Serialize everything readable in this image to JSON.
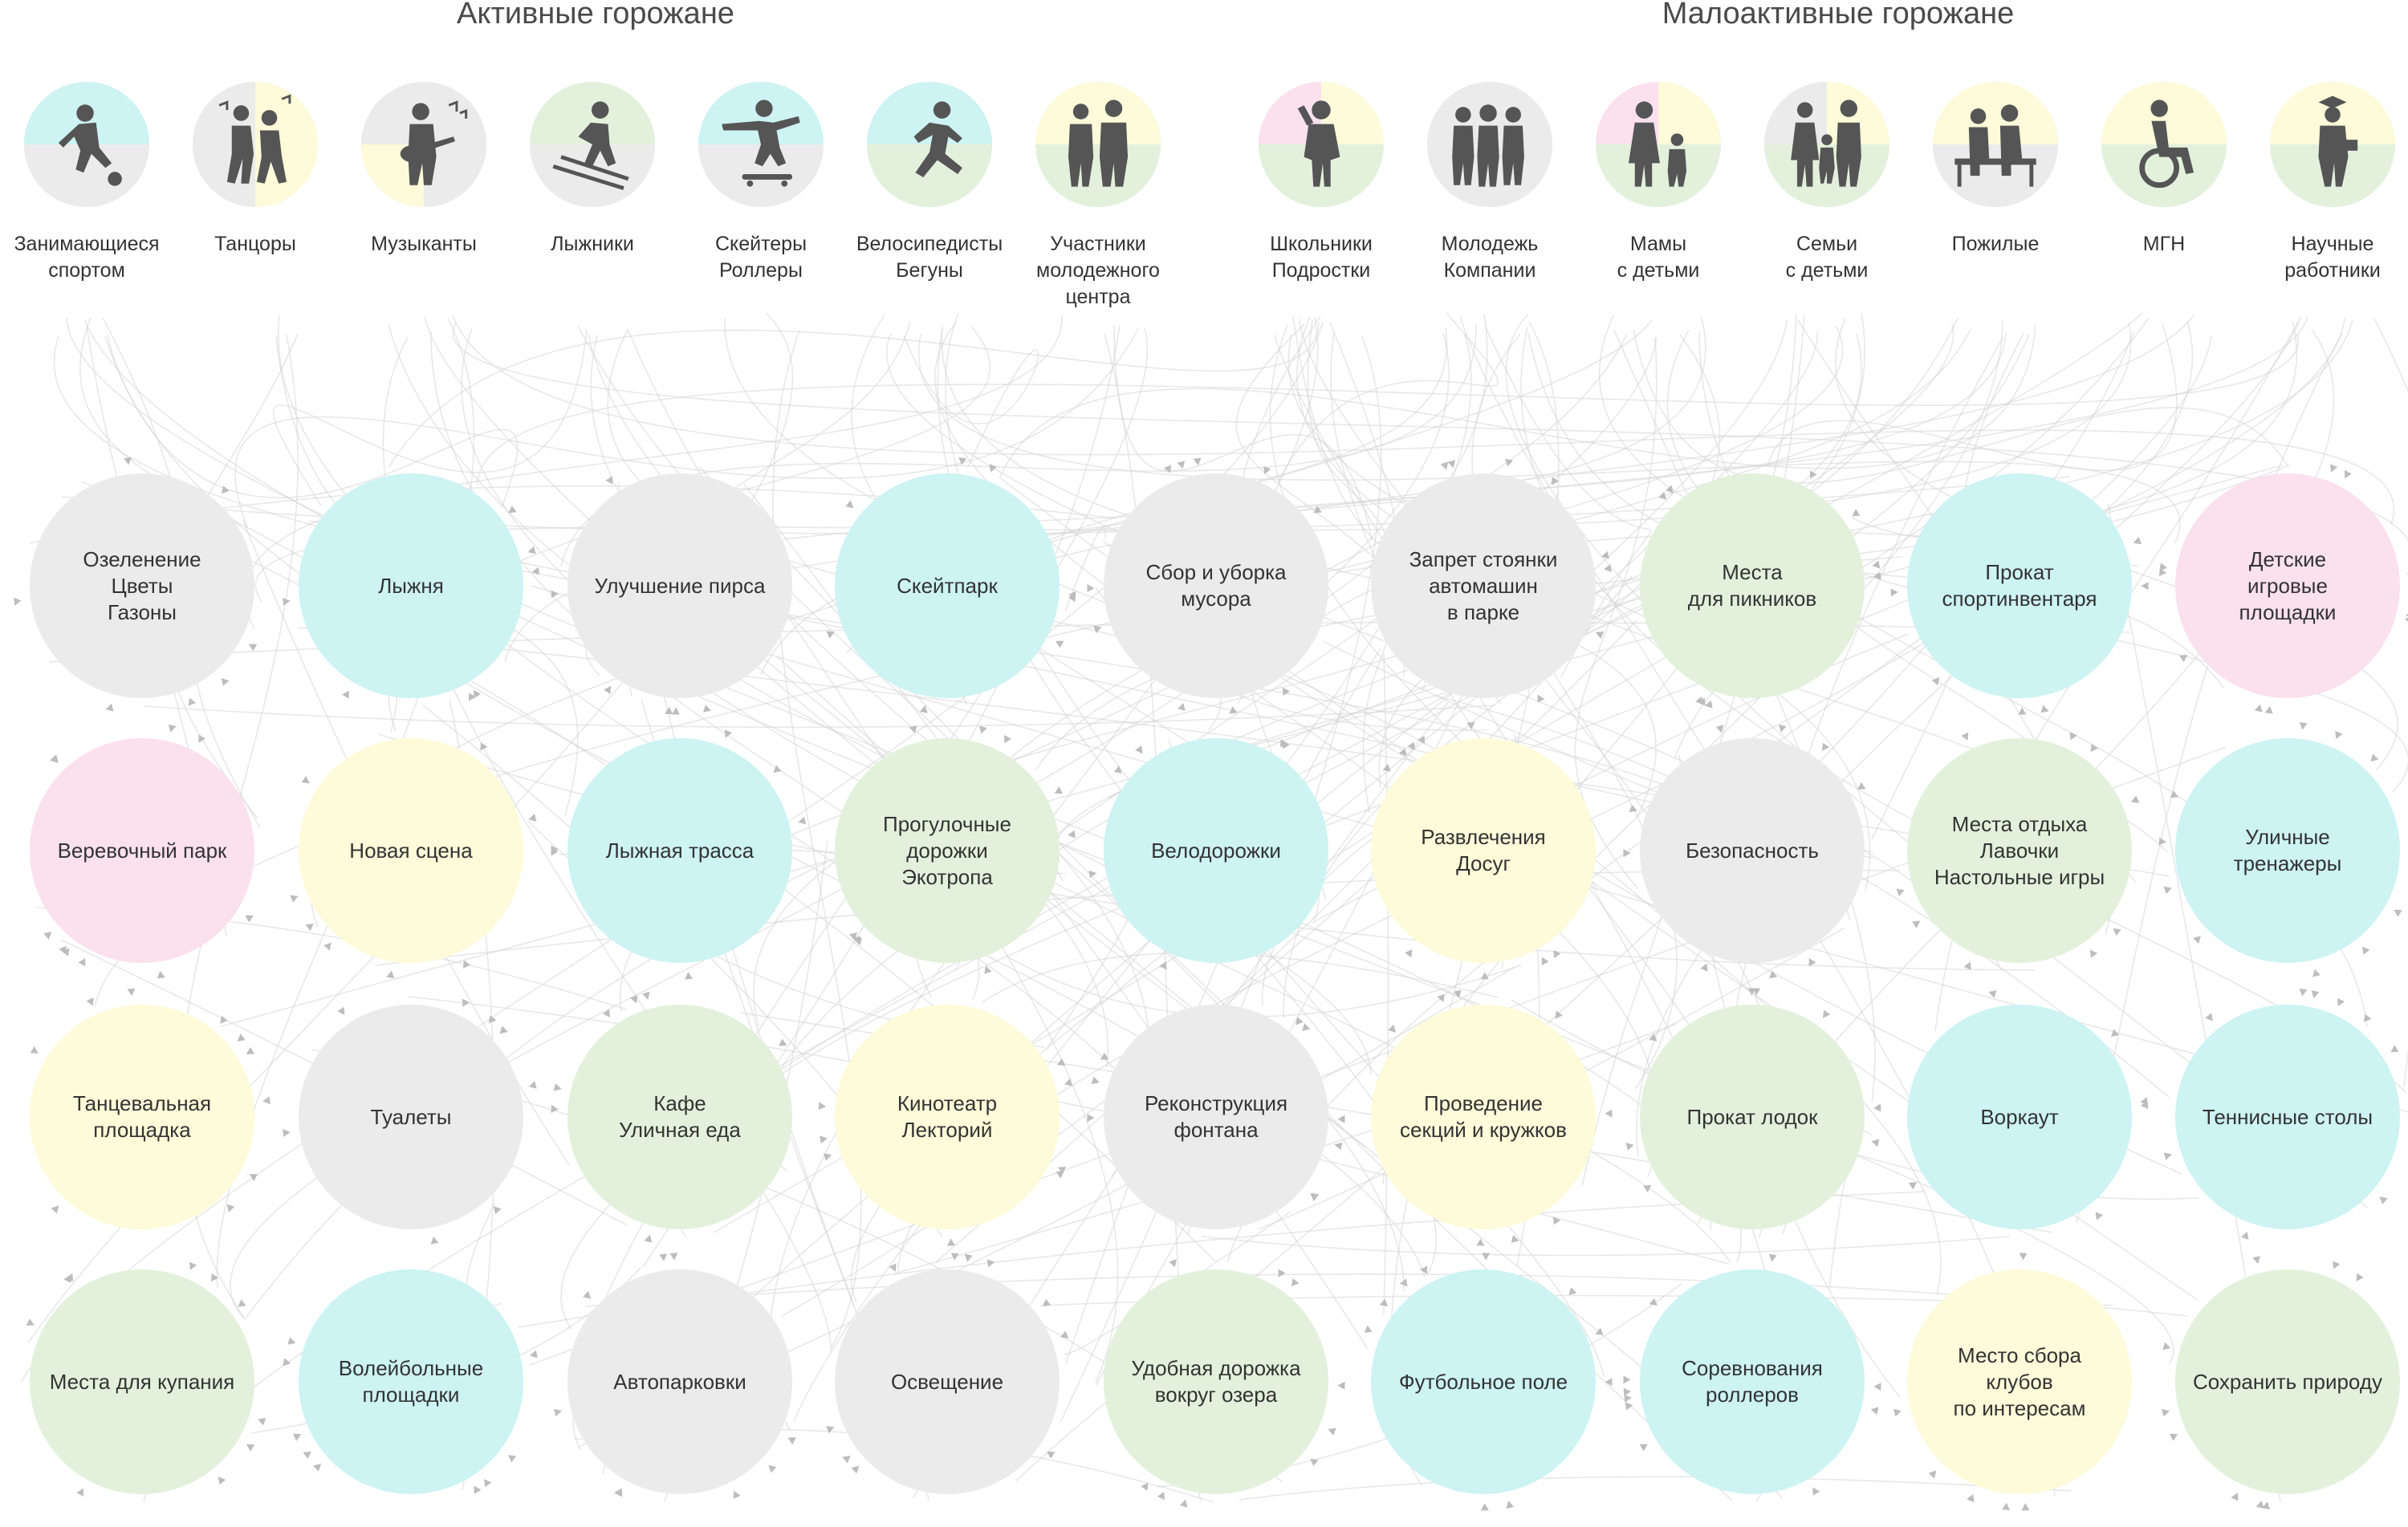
{
  "groups": {
    "active_title": "Активные горожане",
    "passive_title": "Малоактивные горожане"
  },
  "colors": {
    "blue": "#cdf3f3",
    "green": "#e3f1dc",
    "yellow": "#fdfbd9",
    "pink": "#fbe0ee",
    "gray": "#ebebeb",
    "figure": "#555555",
    "edge": "#d6d6d6"
  },
  "personas": [
    {
      "label": "Занимающиеся\nспортом",
      "icon": "football-player-icon",
      "quadrants": [
        "blue",
        "blue",
        "gray",
        "gray"
      ]
    },
    {
      "label": "Танцоры",
      "icon": "dancers-icon",
      "quadrants": [
        "gray",
        "yellow",
        "gray",
        "yellow"
      ]
    },
    {
      "label": "Музыканты",
      "icon": "guitarist-icon",
      "quadrants": [
        "gray",
        "gray",
        "yellow",
        "gray"
      ]
    },
    {
      "label": "Лыжники",
      "icon": "skier-icon",
      "quadrants": [
        "green",
        "green",
        "gray",
        "gray"
      ]
    },
    {
      "label": "Скейтеры\nРоллеры",
      "icon": "skateboarder-icon",
      "quadrants": [
        "blue",
        "blue",
        "gray",
        "gray"
      ]
    },
    {
      "label": "Велосипедисты\nБегуны",
      "icon": "runner-icon",
      "quadrants": [
        "blue",
        "blue",
        "green",
        "green"
      ]
    },
    {
      "label": "Участники\nмолодежного\nцентра",
      "icon": "youth-pair-icon",
      "quadrants": [
        "yellow",
        "yellow",
        "green",
        "green"
      ]
    },
    {
      "label": "Школьники\nПодростки",
      "icon": "teenager-icon",
      "quadrants": [
        "pink",
        "yellow",
        "green",
        "green"
      ]
    },
    {
      "label": "Молодежь\nКомпании",
      "icon": "group-of-friends-icon",
      "quadrants": [
        "gray",
        "gray",
        "gray",
        "gray"
      ]
    },
    {
      "label": "Мамы\nс детьми",
      "icon": "mother-child-icon",
      "quadrants": [
        "pink",
        "yellow",
        "green",
        "green"
      ]
    },
    {
      "label": "Семьи\nс детьми",
      "icon": "family-icon",
      "quadrants": [
        "gray",
        "yellow",
        "green",
        "green"
      ]
    },
    {
      "label": "Пожилые",
      "icon": "elderly-on-bench-icon",
      "quadrants": [
        "yellow",
        "yellow",
        "gray",
        "gray"
      ]
    },
    {
      "label": "МГН",
      "icon": "wheelchair-icon",
      "quadrants": [
        "yellow",
        "yellow",
        "green",
        "green"
      ]
    },
    {
      "label": "Научные\nработники",
      "icon": "scientist-icon",
      "quadrants": [
        "yellow",
        "yellow",
        "green",
        "green"
      ]
    }
  ],
  "nodes": [
    {
      "label": "Озеленение\nЦветы\nГазоны",
      "color": "gray"
    },
    {
      "label": "Лыжня",
      "color": "blue"
    },
    {
      "label": "Улучшение пирса",
      "color": "gray"
    },
    {
      "label": "Скейтпарк",
      "color": "blue"
    },
    {
      "label": "Сбор и уборка\nмусора",
      "color": "gray"
    },
    {
      "label": "Запрет стоянки\nавтомашин\nв парке",
      "color": "gray"
    },
    {
      "label": "Места\nдля пикников",
      "color": "green"
    },
    {
      "label": "Прокат\nспортинвентаря",
      "color": "blue"
    },
    {
      "label": "Детские\nигровые\nплощадки",
      "color": "pink"
    },
    {
      "label": "Веревочный парк",
      "color": "pink"
    },
    {
      "label": "Новая сцена",
      "color": "yellow"
    },
    {
      "label": "Лыжная трасса",
      "color": "blue"
    },
    {
      "label": "Прогулочные\nдорожки\nЭкотропа",
      "color": "green"
    },
    {
      "label": "Велодорожки",
      "color": "blue"
    },
    {
      "label": "Развлечения\nДосуг",
      "color": "yellow"
    },
    {
      "label": "Безопасность",
      "color": "gray"
    },
    {
      "label": "Места отдыха\nЛавочки\nНастольные игры",
      "color": "green"
    },
    {
      "label": "Уличные\nтренажеры",
      "color": "blue"
    },
    {
      "label": "Танцевальная\nплощадка",
      "color": "yellow"
    },
    {
      "label": "Туалеты",
      "color": "gray"
    },
    {
      "label": "Кафе\nУличная еда",
      "color": "green"
    },
    {
      "label": "Кинотеатр\nЛекторий",
      "color": "yellow"
    },
    {
      "label": "Реконструкция\nфонтана",
      "color": "gray"
    },
    {
      "label": "Проведение\nсекций и кружков",
      "color": "yellow"
    },
    {
      "label": "Прокат лодок",
      "color": "green"
    },
    {
      "label": "Воркаут",
      "color": "blue"
    },
    {
      "label": "Теннисные столы",
      "color": "blue"
    },
    {
      "label": "Места для купания",
      "color": "green"
    },
    {
      "label": "Волейбольные\nплощадки",
      "color": "blue"
    },
    {
      "label": "Автопарковки",
      "color": "gray"
    },
    {
      "label": "Освещение",
      "color": "gray"
    },
    {
      "label": "Удобная дорожка\nвокруг озера",
      "color": "green"
    },
    {
      "label": "Футбольное поле",
      "color": "blue"
    },
    {
      "label": "Соревнования\nроллеров",
      "color": "blue"
    },
    {
      "label": "Место сбора\nклубов\nпо интересам",
      "color": "yellow"
    },
    {
      "label": "Сохранить природу",
      "color": "green"
    }
  ]
}
